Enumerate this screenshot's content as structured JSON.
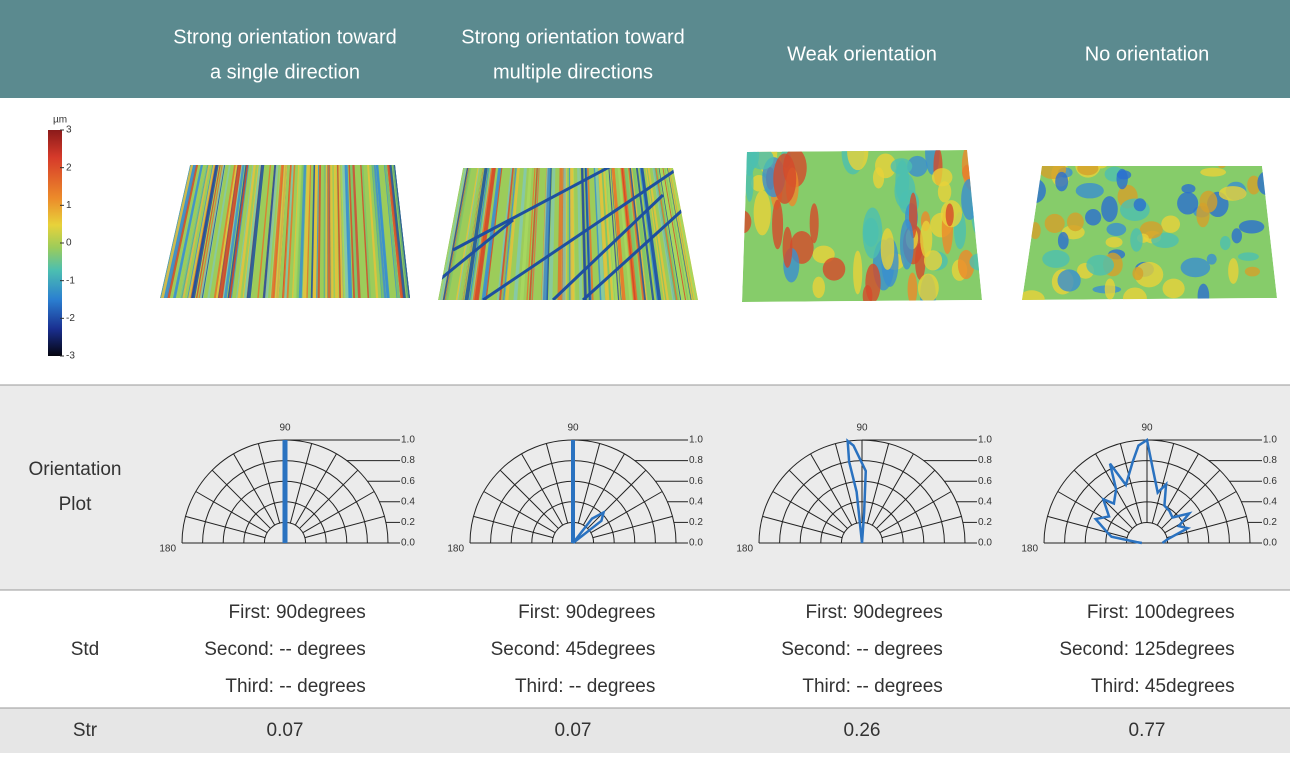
{
  "header": {
    "columns": [
      [
        "Strong orientation toward",
        "a single direction"
      ],
      [
        "Strong orientation toward",
        "multiple directions"
      ],
      [
        "Weak orientation"
      ],
      [
        "No orientation"
      ]
    ]
  },
  "color_scale": {
    "unit": "µm",
    "ticks": [
      3,
      2,
      1,
      0,
      -1,
      -2,
      -3
    ]
  },
  "orientation_plot": {
    "label": [
      "Orientation",
      "Plot"
    ],
    "angle_labels": [
      90,
      180
    ],
    "radial_labels": [
      {
        "value": 1.0,
        "label": "1.0"
      },
      {
        "value": 0.8,
        "label": "0.8"
      },
      {
        "value": 0.6,
        "label": "0.6"
      },
      {
        "value": 0.4,
        "label": "0.4"
      },
      {
        "value": 0.2,
        "label": "0.2"
      },
      {
        "value": 0.0,
        "label": "0.0"
      }
    ]
  },
  "std": {
    "label": "Std",
    "values": [
      [
        "First: 90degrees",
        "Second: -- degrees",
        "Third: -- degrees"
      ],
      [
        "First: 90degrees",
        "Second: 45degrees",
        "Third: -- degrees"
      ],
      [
        "First: 90degrees",
        "Second: -- degrees",
        "Third: -- degrees"
      ],
      [
        "First: 100degrees",
        "Second: 125degrees",
        "Third: 45degrees"
      ]
    ]
  },
  "str": {
    "label": "Str",
    "values": [
      0.07,
      0.07,
      0.26,
      0.77
    ]
  }
}
